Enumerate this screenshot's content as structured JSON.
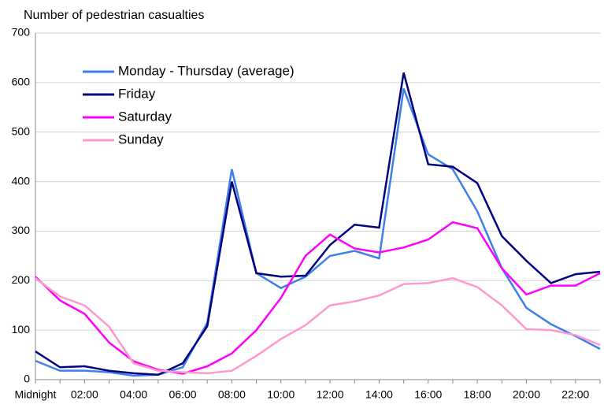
{
  "chart_data": {
    "type": "line",
    "y_axis_label": "Number of pedestrian casualties",
    "categories": [
      "Midnight",
      null,
      "02:00",
      null,
      "04:00",
      null,
      "06:00",
      null,
      "08:00",
      null,
      "10:00",
      null,
      "12:00",
      null,
      "14:00",
      null,
      "16:00",
      null,
      "18:00",
      null,
      "20:00",
      null,
      "22:00",
      null
    ],
    "series": [
      {
        "name": "Monday - Thursday (average)",
        "color": "#3f7fe8",
        "values": [
          38,
          18,
          18,
          15,
          8,
          10,
          25,
          115,
          425,
          215,
          185,
          208,
          250,
          260,
          245,
          588,
          455,
          425,
          340,
          225,
          145,
          112,
          88,
          62
        ]
      },
      {
        "name": "Friday",
        "color": "#000080",
        "values": [
          57,
          25,
          27,
          18,
          13,
          10,
          33,
          108,
          400,
          215,
          208,
          210,
          272,
          313,
          307,
          620,
          435,
          430,
          397,
          290,
          240,
          195,
          213,
          218
        ]
      },
      {
        "name": "Saturday",
        "color": "#ff00ff",
        "values": [
          208,
          160,
          133,
          75,
          37,
          20,
          12,
          27,
          53,
          100,
          165,
          250,
          293,
          265,
          257,
          267,
          283,
          318,
          306,
          225,
          172,
          190,
          190,
          215
        ]
      },
      {
        "name": "Sunday",
        "color": "#ff99cc",
        "values": [
          205,
          168,
          150,
          107,
          33,
          18,
          15,
          13,
          18,
          48,
          82,
          110,
          150,
          158,
          170,
          193,
          195,
          205,
          187,
          150,
          102,
          100,
          90,
          70
        ]
      }
    ],
    "ylim": [
      0,
      700
    ],
    "yticks": [
      0,
      100,
      200,
      300,
      400,
      500,
      600,
      700
    ],
    "grid": true
  }
}
